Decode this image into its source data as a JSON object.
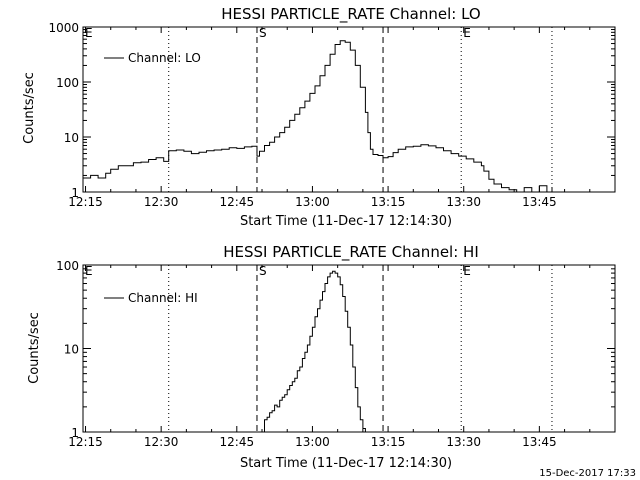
{
  "footer": {
    "timestamp": "15-Dec-2017 17:33"
  },
  "chart_data": [
    {
      "type": "line",
      "title": "HESSI PARTICLE_RATE Channel: LO",
      "xlabel": "Start Time (11-Dec-17 12:14:30)",
      "ylabel": "Counts/sec",
      "yscale": "log",
      "ylim": [
        1,
        1000
      ],
      "xlim": [
        "12:14:30",
        "14:00:00"
      ],
      "x_ticks": [
        "12:15",
        "12:30",
        "12:45",
        "13:00",
        "13:15",
        "13:30",
        "13:45"
      ],
      "y_ticks": [
        "1",
        "10",
        "100",
        "1000"
      ],
      "legend": {
        "label": "Channel: LO",
        "position": "top-left"
      },
      "markers": [
        {
          "label": "",
          "time": "12:14:30",
          "style": "dotted"
        },
        {
          "label": "",
          "time": "12:31:30",
          "style": "dotted"
        },
        {
          "label": "S",
          "time": "12:49:00",
          "style": "dashed"
        },
        {
          "label": "",
          "time": "13:14:00",
          "style": "dashed"
        },
        {
          "label": "E",
          "time": "13:29:30",
          "style": "dotted"
        },
        {
          "label": "",
          "time": "13:47:30",
          "style": "dotted"
        }
      ],
      "marker_labels": [
        "E",
        "S",
        "E"
      ],
      "series": [
        {
          "name": "Channel: LO",
          "x": [
            "12:14:30",
            "12:16:00",
            "12:17:30",
            "12:19:00",
            "12:20:00",
            "12:21:30",
            "12:23:00",
            "12:24:30",
            "12:26:00",
            "12:27:30",
            "12:29:00",
            "12:30:30",
            "12:31:30",
            "12:33:00",
            "12:34:30",
            "12:36:00",
            "12:37:30",
            "12:39:00",
            "12:40:30",
            "12:42:00",
            "12:43:30",
            "12:45:00",
            "12:46:30",
            "12:48:00",
            "12:49:00",
            "12:49:30",
            "12:50:30",
            "12:51:30",
            "12:52:30",
            "12:53:30",
            "12:54:30",
            "12:55:30",
            "12:56:30",
            "12:57:30",
            "12:58:30",
            "12:59:30",
            "13:00:30",
            "13:01:30",
            "13:02:30",
            "13:03:30",
            "13:04:30",
            "13:05:30",
            "13:06:30",
            "13:07:30",
            "13:08:30",
            "13:09:30",
            "13:10:30",
            "13:11:00",
            "13:11:30",
            "13:12:00",
            "13:13:00",
            "13:14:00",
            "13:15:00",
            "13:16:00",
            "13:17:00",
            "13:18:30",
            "13:20:00",
            "13:21:30",
            "13:23:00",
            "13:24:30",
            "13:26:00",
            "13:27:30",
            "13:29:00",
            "13:30:30",
            "13:32:00",
            "13:33:30",
            "13:34:00",
            "13:35:00",
            "13:36:00",
            "13:37:30",
            "13:39:00",
            "13:40:30",
            "13:42:00",
            "13:43:30",
            "13:45:00",
            "13:46:30",
            "13:47:30"
          ],
          "y": [
            1.8,
            2,
            1.8,
            2.2,
            2.6,
            3,
            3,
            3.4,
            3.5,
            3.9,
            4.2,
            3.6,
            5.6,
            5.8,
            5.5,
            5,
            5.3,
            5.6,
            5.8,
            6,
            6.4,
            6.2,
            6.6,
            6.8,
            4.5,
            5.5,
            7,
            8,
            10,
            12,
            15,
            20,
            26,
            34,
            45,
            62,
            85,
            130,
            200,
            320,
            480,
            560,
            530,
            380,
            200,
            80,
            28,
            12,
            6,
            4.8,
            4.6,
            4.2,
            4.4,
            5.2,
            6,
            6.6,
            6.8,
            7.2,
            6.9,
            6.4,
            5.6,
            5,
            4.5,
            4,
            3.5,
            3,
            2.4,
            1.7,
            1.4,
            1.2,
            1.1,
            1,
            1.2,
            1,
            1.3,
            1,
            1.2
          ]
        }
      ]
    },
    {
      "type": "line",
      "title": "HESSI PARTICLE_RATE Channel: HI",
      "xlabel": "Start Time (11-Dec-17 12:14:30)",
      "ylabel": "Counts/sec",
      "yscale": "log",
      "ylim": [
        1,
        100
      ],
      "xlim": [
        "12:14:30",
        "14:00:00"
      ],
      "x_ticks": [
        "12:15",
        "12:30",
        "12:45",
        "13:00",
        "13:15",
        "13:30",
        "13:45"
      ],
      "y_ticks": [
        "1",
        "10",
        "100"
      ],
      "legend": {
        "label": "Channel: HI",
        "position": "top-left"
      },
      "markers": [
        {
          "label": "",
          "time": "12:14:30",
          "style": "dotted"
        },
        {
          "label": "",
          "time": "12:31:30",
          "style": "dotted"
        },
        {
          "label": "S",
          "time": "12:49:00",
          "style": "dashed"
        },
        {
          "label": "",
          "time": "13:14:00",
          "style": "dashed"
        },
        {
          "label": "E",
          "time": "13:29:30",
          "style": "dotted"
        },
        {
          "label": "",
          "time": "13:47:30",
          "style": "dotted"
        }
      ],
      "marker_labels": [
        "E",
        "S",
        "E"
      ],
      "series": [
        {
          "name": "Channel: HI",
          "x": [
            "12:50:00",
            "12:50:30",
            "12:51:00",
            "12:51:30",
            "12:52:00",
            "12:52:30",
            "12:53:00",
            "12:53:30",
            "12:54:00",
            "12:54:30",
            "12:55:00",
            "12:55:30",
            "12:56:00",
            "12:56:30",
            "12:57:00",
            "12:57:30",
            "12:58:00",
            "12:58:30",
            "12:59:00",
            "12:59:30",
            "13:00:00",
            "13:00:30",
            "13:01:00",
            "13:01:30",
            "13:02:00",
            "13:02:30",
            "13:03:00",
            "13:03:30",
            "13:04:00",
            "13:04:30",
            "13:05:00",
            "13:05:30",
            "13:06:00",
            "13:06:30",
            "13:07:00",
            "13:07:30",
            "13:08:00",
            "13:08:30",
            "13:09:00",
            "13:09:30",
            "13:10:00",
            "13:10:30"
          ],
          "y": [
            1,
            1.4,
            1.5,
            1.7,
            1.8,
            2.1,
            2,
            2.4,
            2.6,
            2.8,
            3.2,
            3.6,
            4,
            4.4,
            5.4,
            6,
            7.6,
            9,
            11,
            14,
            18,
            24,
            30,
            38,
            48,
            60,
            72,
            80,
            84,
            80,
            72,
            58,
            42,
            28,
            18,
            11,
            6,
            3.4,
            2,
            1.4,
            1.1,
            1
          ]
        }
      ]
    }
  ]
}
